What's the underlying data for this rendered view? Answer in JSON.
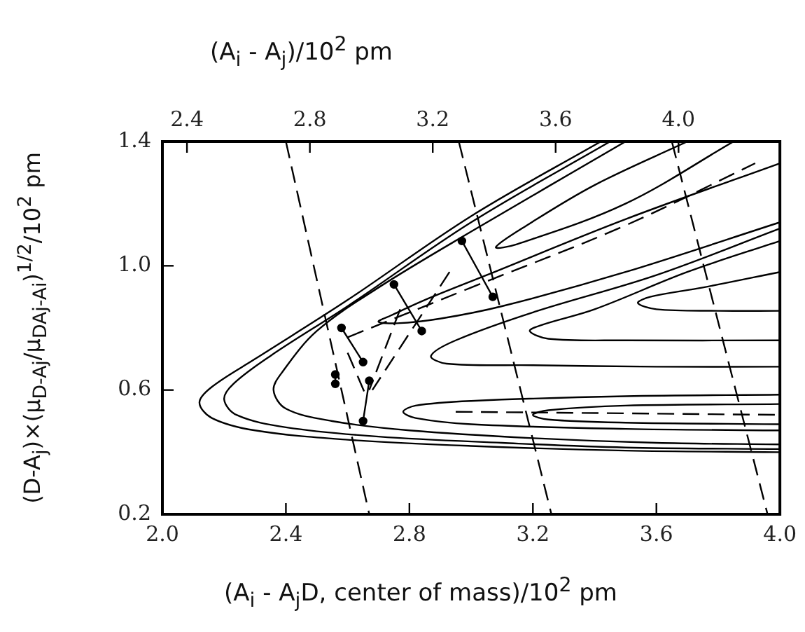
{
  "chart_data": {
    "type": "line",
    "xlabel": "(A$_{i}$ - A$_{j}$D, center of mass)/10$^{2}$ pm",
    "x2label": "(A$_{i}$ - A$_{j}$)/10$^{2}$ pm",
    "ylabel": "(D-A$_{j}$)×(μ$_{D-Aj}$/μ$_{DAj-Ai}$)$^{1/2}$/10$^{2}$ pm",
    "xlim": [
      2.0,
      4.0
    ],
    "xticks": [
      {
        "value": 2.0,
        "label": "2.0"
      },
      2.4,
      2.8,
      3.2,
      3.6,
      {
        "value": 4.0,
        "label": "4.0"
      }
    ],
    "ylim": [
      0.2,
      1.4
    ],
    "yticks": [
      0.2,
      0.6,
      {
        "value": 1.0,
        "label": "1.0"
      },
      1.4
    ],
    "x2lim": [
      2.32,
      4.33
    ],
    "x2ticks": [
      2.4,
      2.8,
      3.2,
      3.6,
      {
        "value": 4.0,
        "label": "4.0"
      }
    ],
    "grid": false,
    "series": [
      {
        "type": "line",
        "color": "#000000",
        "line_style": "solid",
        "x": [
          3.42,
          3.0,
          2.6,
          2.3,
          2.16,
          2.12,
          2.16,
          2.3,
          2.6,
          3.0,
          3.5,
          4.0
        ],
        "values": [
          1.4,
          1.16,
          0.89,
          0.7,
          0.61,
          0.56,
          0.51,
          0.47,
          0.44,
          0.42,
          0.405,
          0.4
        ]
      },
      {
        "type": "line",
        "color": "#000000",
        "line_style": "solid",
        "x": [
          3.45,
          3.0,
          2.6,
          2.35,
          2.23,
          2.2,
          2.24,
          2.4,
          2.7,
          3.1,
          3.5,
          4.0
        ],
        "values": [
          1.4,
          1.14,
          0.87,
          0.71,
          0.62,
          0.57,
          0.52,
          0.48,
          0.45,
          0.43,
          0.415,
          0.41
        ]
      },
      {
        "type": "line",
        "color": "#000000",
        "line_style": "solid",
        "x": [
          3.5,
          3.0,
          2.7,
          2.5,
          2.39,
          2.36,
          2.4,
          2.55,
          2.8,
          3.2,
          3.6,
          4.0
        ],
        "values": [
          1.4,
          1.11,
          0.93,
          0.79,
          0.66,
          0.6,
          0.54,
          0.5,
          0.47,
          0.445,
          0.43,
          0.425
        ]
      },
      {
        "type": "line",
        "color": "#000000",
        "line_style": "solid",
        "x": [
          4.0,
          3.5,
          3.0,
          2.82,
          2.78,
          2.82,
          3.0,
          3.5,
          4.0
        ],
        "values": [
          0.585,
          0.58,
          0.565,
          0.55,
          0.53,
          0.51,
          0.49,
          0.475,
          0.47
        ]
      },
      {
        "type": "line",
        "color": "#000000",
        "line_style": "solid",
        "x": [
          4.0,
          3.5,
          3.25,
          3.2,
          3.25,
          3.5,
          4.0
        ],
        "values": [
          0.555,
          0.55,
          0.535,
          0.52,
          0.505,
          0.495,
          0.49
        ]
      },
      {
        "type": "line",
        "color": "#000000",
        "line_style": "solid",
        "x": [
          4.0,
          3.6,
          3.2,
          2.95,
          2.87,
          2.92,
          3.2,
          3.6,
          4.0
        ],
        "values": [
          1.12,
          0.97,
          0.85,
          0.76,
          0.71,
          0.685,
          0.68,
          0.675,
          0.675
        ]
      },
      {
        "type": "line",
        "color": "#000000",
        "line_style": "solid",
        "x": [
          4.0,
          3.7,
          3.4,
          3.23,
          3.19,
          3.25,
          3.5,
          4.0
        ],
        "values": [
          1.08,
          0.98,
          0.86,
          0.81,
          0.79,
          0.765,
          0.76,
          0.76
        ]
      },
      {
        "type": "line",
        "color": "#000000",
        "line_style": "solid",
        "x": [
          4.0,
          3.75,
          3.58,
          3.54,
          3.6,
          3.8,
          4.0
        ],
        "values": [
          0.98,
          0.93,
          0.9,
          0.88,
          0.86,
          0.855,
          0.855
        ]
      },
      {
        "type": "line",
        "color": "#000000",
        "line_style": "solid",
        "x": [
          4.0,
          3.5,
          3.05,
          2.85,
          2.74,
          2.7,
          2.76,
          2.9,
          3.1,
          3.5,
          4.0
        ],
        "values": [
          1.33,
          1.15,
          0.97,
          0.89,
          0.84,
          0.82,
          0.815,
          0.83,
          0.87,
          0.98,
          1.14
        ]
      },
      {
        "type": "line",
        "color": "#000000",
        "line_style": "solid",
        "x": [
          3.7,
          3.4,
          3.18,
          3.08,
          3.15,
          3.5,
          3.85
        ],
        "values": [
          1.4,
          1.26,
          1.13,
          1.06,
          1.07,
          1.2,
          1.4
        ]
      },
      {
        "type": "line",
        "color": "#000000",
        "line_style": "dashed",
        "x": [
          2.95,
          3.5,
          4.0
        ],
        "values": [
          0.53,
          0.525,
          0.52
        ]
      },
      {
        "type": "line",
        "color": "#000000",
        "line_style": "dashed",
        "x": [
          2.6,
          3.0,
          3.5,
          3.92
        ],
        "values": [
          0.77,
          0.93,
          1.13,
          1.33
        ]
      },
      {
        "type": "line",
        "color": "#000000",
        "line_style": "dashed",
        "x": [
          2.4,
          2.67
        ],
        "values": [
          1.4,
          0.2
        ]
      },
      {
        "type": "line",
        "color": "#000000",
        "line_style": "dashed",
        "x": [
          2.96,
          3.26
        ],
        "values": [
          1.4,
          0.2
        ]
      },
      {
        "type": "line",
        "color": "#000000",
        "line_style": "dashed",
        "x": [
          3.65,
          3.96
        ],
        "values": [
          1.4,
          0.2
        ]
      },
      {
        "type": "line",
        "color": "#000000",
        "line_style": "dashed",
        "x": [
          2.6,
          2.66
        ],
        "values": [
          0.72,
          0.58
        ]
      },
      {
        "type": "line",
        "color": "#000000",
        "line_style": "dashed",
        "x": [
          2.77,
          2.67
        ],
        "values": [
          0.86,
          0.6
        ]
      },
      {
        "type": "line",
        "color": "#000000",
        "line_style": "dashed",
        "x": [
          2.93,
          2.68
        ],
        "values": [
          0.98,
          0.6
        ]
      },
      {
        "type": "line",
        "color": "#000000",
        "line_style": "solid",
        "marker": "circle",
        "x": [
          2.58,
          2.65
        ],
        "values": [
          0.8,
          0.69
        ]
      },
      {
        "type": "line",
        "color": "#000000",
        "line_style": "solid",
        "marker": "circle",
        "x": [
          2.75,
          2.84
        ],
        "values": [
          0.94,
          0.79
        ]
      },
      {
        "type": "line",
        "color": "#000000",
        "line_style": "solid",
        "marker": "circle",
        "x": [
          2.97,
          3.07
        ],
        "values": [
          1.08,
          0.9
        ]
      },
      {
        "type": "line",
        "color": "#000000",
        "line_style": "solid",
        "marker": "circle",
        "x": [
          2.67,
          2.65
        ],
        "values": [
          0.63,
          0.5
        ]
      },
      {
        "type": "line",
        "color": "#000000",
        "line_style": "solid",
        "marker": "circle",
        "x": [
          2.56,
          2.56
        ],
        "values": [
          0.65,
          0.62
        ]
      }
    ]
  }
}
